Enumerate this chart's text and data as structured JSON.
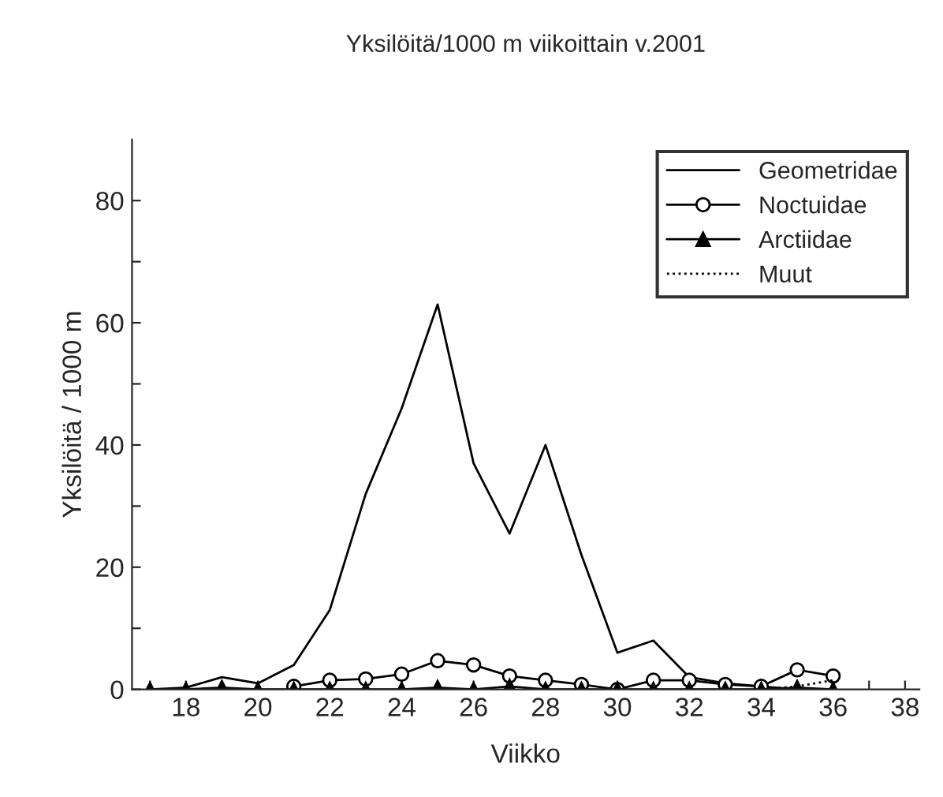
{
  "chart_data": {
    "type": "line",
    "title": "Yksilöitä/1000 m viikoittain v.2001",
    "xlabel": "Viikko",
    "ylabel": "Yksilöitä / 1000 m",
    "x": [
      17,
      18,
      19,
      20,
      21,
      22,
      23,
      24,
      25,
      26,
      27,
      28,
      29,
      30,
      31,
      32,
      33,
      34,
      35,
      36
    ],
    "series": [
      {
        "name": "Geometridae",
        "color": "#000000",
        "marker": "none",
        "line_style": "solid",
        "values": [
          0,
          0.3,
          2,
          1,
          4,
          13,
          32,
          46,
          63,
          37,
          25.5,
          40,
          22,
          6,
          8,
          2,
          1,
          0.5,
          0,
          0
        ]
      },
      {
        "name": "Noctuidae",
        "color": "#000000",
        "marker": "circle",
        "line_style": "solid",
        "values": [
          null,
          null,
          null,
          null,
          0.5,
          1.5,
          1.7,
          2.5,
          4.7,
          4,
          2.2,
          1.5,
          0.8,
          0,
          1.5,
          1.5,
          0.8,
          0.5,
          3.2,
          2.2
        ]
      },
      {
        "name": "Arctiidae",
        "color": "#000000",
        "marker": "triangle",
        "line_style": "solid",
        "values": [
          0,
          0,
          0.3,
          0,
          0,
          0,
          0,
          0,
          0.3,
          0,
          0.5,
          0,
          0,
          0,
          0,
          0,
          0,
          0,
          0.3,
          0
        ]
      },
      {
        "name": "Muut",
        "color": "#000000",
        "marker": "none",
        "line_style": "dotted",
        "values": [
          null,
          null,
          null,
          null,
          null,
          null,
          null,
          null,
          null,
          null,
          null,
          null,
          null,
          null,
          null,
          null,
          null,
          0,
          0.5,
          1.5
        ]
      }
    ],
    "xlim": [
      16.5,
      38.4
    ],
    "ylim": [
      0,
      90
    ],
    "xticks": [
      {
        "value": 17,
        "label": null
      },
      18,
      {
        "value": 19,
        "label": null
      },
      20,
      {
        "value": 21,
        "label": null
      },
      22,
      {
        "value": 23,
        "label": null
      },
      24,
      {
        "value": 25,
        "label": null
      },
      26,
      {
        "value": 27,
        "label": null
      },
      28,
      {
        "value": 29,
        "label": null
      },
      30,
      {
        "value": 31,
        "label": null
      },
      32,
      {
        "value": 33,
        "label": null
      },
      34,
      {
        "value": 35,
        "label": null
      },
      36,
      {
        "value": 37,
        "label": null
      },
      38
    ],
    "yticks": [
      0,
      {
        "value": 10,
        "label": null
      },
      20,
      {
        "value": 30,
        "label": null
      },
      40,
      {
        "value": 50,
        "label": null
      },
      60,
      {
        "value": 70,
        "label": null
      },
      80
    ],
    "grid": false,
    "legend": "top right"
  }
}
